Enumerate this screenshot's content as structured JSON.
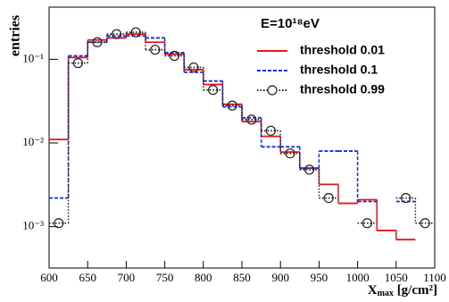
{
  "chart_data": {
    "type": "histogram",
    "y_label": "entries",
    "x_label": "X",
    "x_label_sub": "max",
    "x_label_rest": " [g/cm²]",
    "legend_title": "E=10¹⁸eV",
    "bins": [
      600,
      625,
      650,
      675,
      700,
      725,
      750,
      775,
      800,
      825,
      850,
      875,
      900,
      925,
      950,
      975,
      1000,
      1025,
      1050,
      1075,
      1100
    ],
    "series": [
      {
        "name": "threshold 0.01",
        "color": "#e8141b",
        "style": "solid",
        "values": [
          0.011,
          0.105,
          0.17,
          0.18,
          0.2,
          0.16,
          0.115,
          0.075,
          0.05,
          0.029,
          0.018,
          0.012,
          0.0078,
          0.005,
          0.0032,
          0.0019,
          0.0021,
          0.0009,
          0.0007,
          null
        ]
      },
      {
        "name": "threshold 0.1",
        "color": "#1a2fd6",
        "style": "dashed",
        "values": [
          0.0022,
          0.11,
          0.16,
          0.19,
          0.19,
          0.18,
          0.12,
          0.07,
          0.055,
          0.027,
          0.02,
          0.009,
          0.009,
          0.005,
          0.008,
          0.008,
          0.002,
          null,
          0.002,
          null
        ]
      },
      {
        "name": "threshold 0.99",
        "color": "#222222",
        "style": "dotted",
        "marker": "circle",
        "values": [
          0.0011,
          0.09,
          0.16,
          0.2,
          0.21,
          0.13,
          0.11,
          0.08,
          0.043,
          0.028,
          0.019,
          0.014,
          0.0075,
          0.0048,
          0.0022,
          null,
          0.0011,
          null,
          0.0022,
          0.0011
        ]
      }
    ],
    "xlim": [
      600,
      1100
    ],
    "xticks": [
      600,
      650,
      700,
      750,
      800,
      850,
      900,
      950,
      1000,
      1050,
      1100
    ],
    "ylim": [
      0.00032,
      0.42
    ],
    "log_y": true,
    "yticks": [
      {
        "value": 0.001,
        "label": "10⁻³"
      },
      {
        "value": 0.01,
        "label": "10⁻²"
      },
      {
        "value": 0.1,
        "label": "10⁻¹"
      }
    ]
  }
}
